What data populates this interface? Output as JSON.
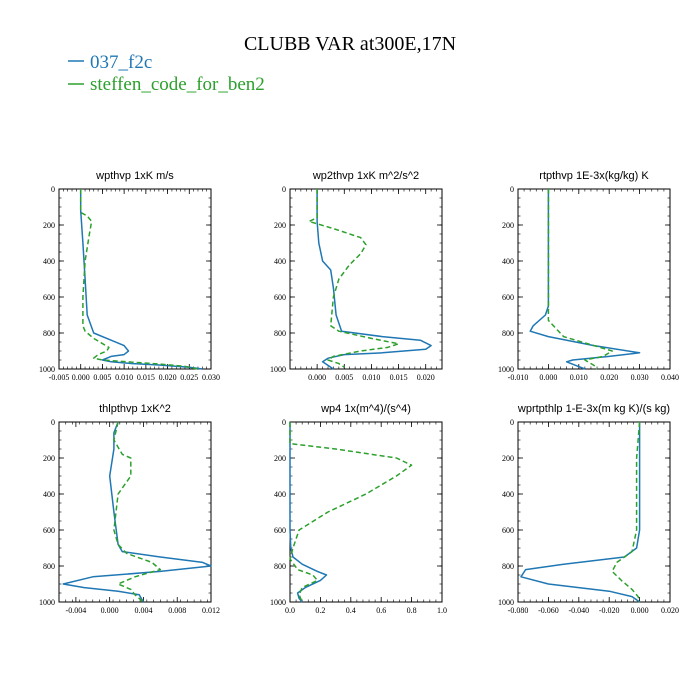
{
  "figure": {
    "title": "CLUBB VAR at300E,17N",
    "legend": [
      {
        "name": "037_f2c",
        "color": "#1f77b4"
      },
      {
        "name": "steffen_code_for_ben2",
        "color": "#2ca02c"
      }
    ]
  },
  "chart_data": [
    {
      "type": "line",
      "title": "wpthvp  1xK m/s",
      "xlim": [
        -0.005,
        0.03
      ],
      "xticks": [
        "-0.005",
        "0.000",
        "0.005",
        "0.010",
        "0.015",
        "0.020",
        "0.025",
        "0.030"
      ],
      "ylim": [
        1000,
        0
      ],
      "yticks": [
        "0",
        "200",
        "400",
        "600",
        "800",
        "1000"
      ],
      "series": [
        {
          "name": "037_f2c",
          "color": "#1f77b4",
          "dash": false,
          "x": [
            0.0,
            0.0,
            0.0005,
            0.001,
            0.0015,
            0.003,
            0.007,
            0.01,
            0.011,
            0.01,
            0.007,
            0.005,
            0.007,
            0.012,
            0.018,
            0.025,
            0.028
          ],
          "y": [
            0,
            120,
            300,
            500,
            700,
            800,
            840,
            870,
            900,
            920,
            930,
            950,
            960,
            970,
            978,
            990,
            1000
          ]
        },
        {
          "name": "steffen_code_for_ben2",
          "color": "#2ca02c",
          "dash": true,
          "x": [
            0.0,
            0.0,
            0.0015,
            0.0025,
            0.002,
            0.001,
            0.0005,
            0.0005,
            0.001,
            0.003,
            0.0065,
            0.006,
            0.004,
            0.003,
            0.005,
            0.012,
            0.018,
            0.024,
            0.027
          ],
          "y": [
            0,
            130,
            150,
            180,
            250,
            400,
            600,
            760,
            790,
            830,
            880,
            900,
            920,
            940,
            950,
            962,
            972,
            985,
            1000
          ]
        }
      ]
    },
    {
      "type": "line",
      "title": "wp2thvp  1xK m^2/s^2",
      "xlim": [
        -0.005,
        0.023
      ],
      "xticks": [
        "0.000",
        "0.005",
        "0.010",
        "0.015",
        "0.020"
      ],
      "ylim": [
        1000,
        0
      ],
      "yticks": [
        "0",
        "200",
        "400",
        "600",
        "800",
        "1000"
      ],
      "series": [
        {
          "name": "037_f2c",
          "color": "#1f77b4",
          "dash": false,
          "x": [
            0.0,
            0.0,
            0.0003,
            0.001,
            0.0025,
            0.003,
            0.0035,
            0.0045,
            0.012,
            0.019,
            0.021,
            0.02,
            0.012,
            0.005,
            0.002,
            0.001,
            0.002,
            0.003
          ],
          "y": [
            0,
            180,
            300,
            400,
            450,
            550,
            700,
            790,
            820,
            840,
            870,
            890,
            910,
            920,
            940,
            960,
            980,
            1000
          ]
        },
        {
          "name": "steffen_code_for_ben2",
          "color": "#2ca02c",
          "dash": true,
          "x": [
            0.0,
            0.0,
            -0.0015,
            0.003,
            0.008,
            0.009,
            0.008,
            0.006,
            0.004,
            0.003,
            0.0025,
            0.004,
            0.01,
            0.015,
            0.013,
            0.008,
            0.003,
            0.002,
            0.004,
            0.005
          ],
          "y": [
            0,
            160,
            180,
            220,
            270,
            310,
            360,
            420,
            500,
            600,
            760,
            790,
            830,
            860,
            880,
            900,
            930,
            950,
            970,
            990
          ]
        }
      ]
    },
    {
      "type": "line",
      "title": "rtpthvp  1E-3x(kg/kg) K",
      "xlim": [
        -0.01,
        0.04
      ],
      "xticks": [
        "-0.010",
        "0.000",
        "0.010",
        "0.020",
        "0.030",
        "0.040"
      ],
      "ylim": [
        1000,
        0
      ],
      "yticks": [
        "0",
        "200",
        "400",
        "600",
        "800",
        "1000"
      ],
      "series": [
        {
          "name": "037_f2c",
          "color": "#1f77b4",
          "dash": false,
          "x": [
            0.0,
            0.0,
            -0.001,
            -0.005,
            -0.006,
            0.0,
            0.015,
            0.03,
            0.02,
            0.008,
            0.006,
            0.009,
            0.012
          ],
          "y": [
            0,
            650,
            700,
            760,
            790,
            820,
            870,
            910,
            930,
            950,
            960,
            980,
            1000
          ]
        },
        {
          "name": "steffen_code_for_ben2",
          "color": "#2ca02c",
          "dash": true,
          "x": [
            0.0,
            0.0,
            0.0,
            0.005,
            0.015,
            0.021,
            0.018,
            0.012,
            0.015,
            0.016
          ],
          "y": [
            0,
            600,
            730,
            820,
            870,
            900,
            930,
            950,
            980,
            1000
          ]
        }
      ]
    },
    {
      "type": "line",
      "title": "thlpthvp  1xK^2",
      "xlim": [
        -0.006,
        0.012
      ],
      "xticks": [
        "-0.004",
        "0.000",
        "0.004",
        "0.008",
        "0.012"
      ],
      "ylim": [
        1000,
        0
      ],
      "yticks": [
        "0",
        "200",
        "400",
        "600",
        "800",
        "1000"
      ],
      "series": [
        {
          "name": "037_f2c",
          "color": "#1f77b4",
          "dash": false,
          "x": [
            0.001,
            0.0005,
            0.0005,
            0.0,
            0.0005,
            0.001,
            0.0015,
            0.006,
            0.011,
            0.012,
            0.006,
            -0.002,
            -0.0055,
            -0.003,
            0.001,
            0.0035,
            0.004
          ],
          "y": [
            0,
            60,
            150,
            300,
            500,
            680,
            720,
            750,
            780,
            800,
            830,
            860,
            900,
            920,
            940,
            960,
            1000
          ]
        },
        {
          "name": "steffen_code_for_ben2",
          "color": "#2ca02c",
          "dash": true,
          "x": [
            0.001,
            0.0005,
            0.0015,
            0.0025,
            0.0025,
            0.001,
            0.0005,
            0.001,
            0.002,
            0.005,
            0.006,
            0.003,
            0.001,
            0.0025,
            0.003,
            0.004
          ],
          "y": [
            0,
            100,
            180,
            200,
            300,
            400,
            600,
            680,
            730,
            780,
            820,
            860,
            900,
            930,
            960,
            1000
          ]
        }
      ]
    },
    {
      "type": "line",
      "title": "wp4  1x(m^4)/(s^4)",
      "xlim": [
        0.0,
        1.0
      ],
      "xticks": [
        "0.0",
        "0.2",
        "0.4",
        "0.6",
        "0.8",
        "1.0"
      ],
      "ylim": [
        1000,
        0
      ],
      "yticks": [
        "0",
        "200",
        "400",
        "600",
        "800",
        "1000"
      ],
      "series": [
        {
          "name": "037_f2c",
          "color": "#1f77b4",
          "dash": false,
          "x": [
            0.0,
            0.0,
            0.005,
            0.02,
            0.08,
            0.18,
            0.24,
            0.2,
            0.1,
            0.05,
            0.06,
            0.08
          ],
          "y": [
            0,
            600,
            700,
            750,
            790,
            830,
            850,
            880,
            920,
            950,
            980,
            1000
          ]
        },
        {
          "name": "steffen_code_for_ben2",
          "color": "#2ca02c",
          "dash": true,
          "x": [
            0.0,
            0.0,
            0.3,
            0.7,
            0.8,
            0.7,
            0.5,
            0.25,
            0.06,
            0.02,
            0.0,
            0.05,
            0.15,
            0.18,
            0.08,
            0.06,
            0.08
          ],
          "y": [
            0,
            120,
            150,
            200,
            240,
            300,
            400,
            500,
            600,
            700,
            760,
            820,
            850,
            880,
            920,
            960,
            1000
          ]
        }
      ]
    },
    {
      "type": "line",
      "title": "wprtpthlp  1-E-3x(m kg K)/(s kg)",
      "xlim": [
        -0.08,
        0.02
      ],
      "xticks": [
        "-0.080",
        "-0.060",
        "-0.040",
        "-0.020",
        "0.000",
        "0.020"
      ],
      "ylim": [
        1000,
        0
      ],
      "yticks": [
        "0",
        "200",
        "400",
        "600",
        "800",
        "1000"
      ],
      "series": [
        {
          "name": "037_f2c",
          "color": "#1f77b4",
          "dash": false,
          "x": [
            0.0,
            0.0,
            0.0,
            -0.002,
            -0.01,
            -0.05,
            -0.075,
            -0.078,
            -0.06,
            -0.02,
            -0.005,
            0.0
          ],
          "y": [
            0,
            400,
            600,
            700,
            750,
            790,
            820,
            860,
            900,
            940,
            970,
            1000
          ]
        },
        {
          "name": "steffen_code_for_ben2",
          "color": "#2ca02c",
          "dash": true,
          "x": [
            0.0,
            -0.001,
            -0.002,
            -0.002,
            -0.002,
            -0.005,
            -0.015,
            -0.018,
            -0.012,
            -0.005,
            -0.001,
            0.0
          ],
          "y": [
            0,
            100,
            200,
            400,
            600,
            720,
            780,
            830,
            880,
            930,
            970,
            1000
          ]
        }
      ]
    }
  ]
}
